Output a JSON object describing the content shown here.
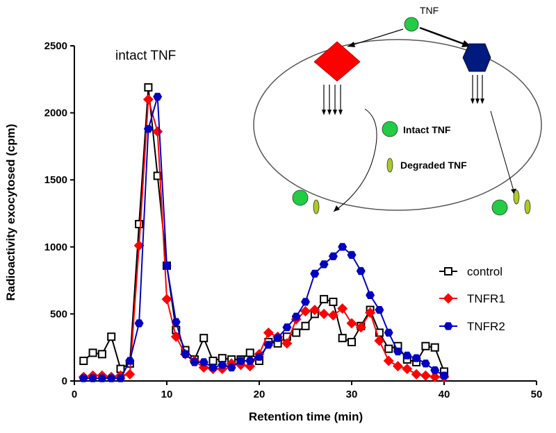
{
  "chart_data": {
    "type": "line",
    "title": "",
    "xlabel": "Retention time (min)",
    "ylabel": "Radioactivity exocytosed (cpm)",
    "xlim": [
      0,
      50
    ],
    "ylim": [
      0,
      2500
    ],
    "xticks": [
      0,
      10,
      20,
      30,
      40,
      50
    ],
    "yticks": [
      0,
      500,
      1000,
      1500,
      2000,
      2500
    ],
    "grid": false,
    "legend_position": "right",
    "annotation": "intact TNF",
    "series": [
      {
        "name": "control",
        "marker": "square-open",
        "color": "#000000",
        "x": [
          1,
          2,
          3,
          4,
          5,
          6,
          7,
          8,
          9,
          10,
          11,
          12,
          13,
          14,
          15,
          16,
          17,
          18,
          19,
          20,
          21,
          22,
          23,
          24,
          25,
          26,
          27,
          28,
          29,
          30,
          31,
          32,
          33,
          34,
          35,
          36,
          37,
          38,
          39,
          40
        ],
        "y": [
          150,
          210,
          200,
          330,
          90,
          130,
          1170,
          2190,
          1530,
          860,
          380,
          230,
          160,
          320,
          150,
          170,
          160,
          160,
          210,
          150,
          290,
          280,
          330,
          360,
          410,
          500,
          610,
          590,
          320,
          290,
          410,
          530,
          360,
          240,
          260,
          160,
          140,
          260,
          250,
          70
        ]
      },
      {
        "name": "TNFR1",
        "marker": "diamond",
        "color": "#ff0000",
        "x": [
          1,
          2,
          3,
          4,
          5,
          6,
          7,
          8,
          9,
          10,
          11,
          12,
          13,
          14,
          15,
          16,
          17,
          18,
          19,
          20,
          21,
          22,
          23,
          24,
          25,
          26,
          27,
          28,
          29,
          30,
          31,
          32,
          33,
          34,
          35,
          36,
          37,
          38,
          39,
          40
        ],
        "y": [
          30,
          40,
          40,
          30,
          40,
          50,
          1010,
          2100,
          1860,
          610,
          330,
          200,
          150,
          100,
          90,
          90,
          130,
          120,
          110,
          200,
          360,
          330,
          280,
          460,
          520,
          530,
          500,
          490,
          540,
          430,
          400,
          510,
          300,
          150,
          110,
          90,
          50,
          40,
          30,
          30
        ]
      },
      {
        "name": "TNFR2",
        "marker": "hexagon",
        "color": "#0000c0",
        "x": [
          1,
          2,
          3,
          4,
          5,
          6,
          7,
          8,
          9,
          10,
          11,
          12,
          13,
          14,
          15,
          16,
          17,
          18,
          19,
          20,
          21,
          22,
          23,
          24,
          25,
          26,
          27,
          28,
          29,
          30,
          31,
          32,
          33,
          34,
          35,
          36,
          37,
          38,
          39,
          40
        ],
        "y": [
          20,
          20,
          20,
          20,
          20,
          150,
          430,
          1880,
          2120,
          860,
          440,
          200,
          140,
          140,
          100,
          120,
          100,
          150,
          150,
          180,
          270,
          320,
          400,
          480,
          590,
          800,
          870,
          930,
          1000,
          940,
          820,
          640,
          530,
          360,
          220,
          190,
          170,
          130,
          80,
          40
        ]
      }
    ]
  },
  "diagram": {
    "tnf_label": "TNF",
    "intact_label": "Intact TNF",
    "degraded_label": "Degraded TNF",
    "colors": {
      "tnf": "#22cc44",
      "degraded": "#aacc22",
      "tnfr1": "#ff0000",
      "tnfr2": "#001a80"
    }
  }
}
